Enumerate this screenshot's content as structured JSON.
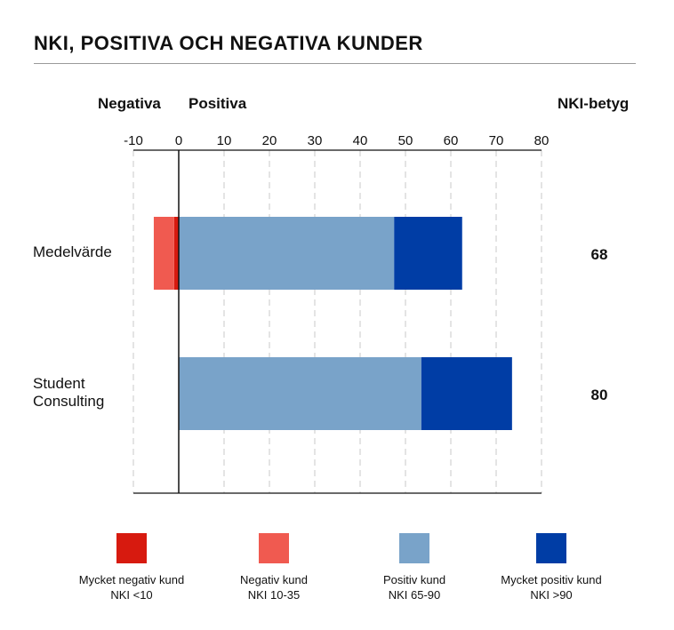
{
  "chart_data": {
    "type": "bar",
    "orientation": "horizontal",
    "stacked": true,
    "title": "NKI, POSITIVA OCH NEGATIVA KUNDER",
    "left_header_negative": "Negativa",
    "left_header_positive": "Positiva",
    "right_header": "NKI-betyg",
    "xlim": [
      -10,
      80
    ],
    "xticks": [
      -10,
      0,
      10,
      20,
      30,
      40,
      50,
      60,
      70,
      80
    ],
    "grid": true,
    "categories": [
      {
        "label_lines": [
          "Medelvärde"
        ],
        "nki": "68"
      },
      {
        "label_lines": [
          "Student",
          "Consulting"
        ],
        "nki": "80"
      }
    ],
    "series": [
      {
        "name": "Mycket negativ kund",
        "sub": "NKI <10",
        "color": "#d71a0f",
        "values": [
          -1,
          0
        ]
      },
      {
        "name": "Negativ kund",
        "sub": "NKI 10-35",
        "color": "#f05a50",
        "values": [
          -4.5,
          0
        ]
      },
      {
        "name": "Positiv kund",
        "sub": "NKI 65-90",
        "color": "#79a3c9",
        "values": [
          47.5,
          53.5
        ]
      },
      {
        "name": "Mycket positiv kund",
        "sub": "NKI >90",
        "color": "#003da5",
        "values": [
          15,
          20
        ]
      }
    ],
    "legend_position": "bottom"
  }
}
